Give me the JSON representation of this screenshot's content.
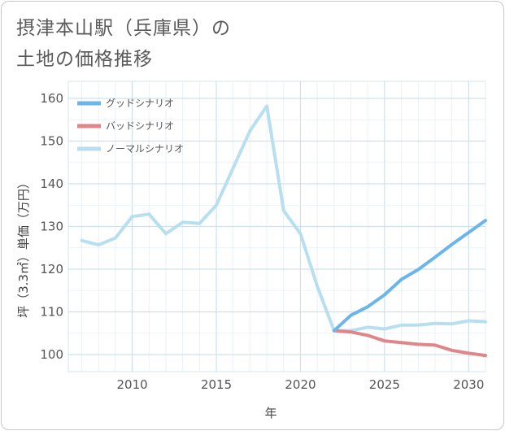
{
  "title_lines": [
    "摂津本山駅（兵庫県）の",
    "土地の価格推移"
  ],
  "chart_data": {
    "type": "line",
    "title": "摂津本山駅（兵庫県）の土地の価格推移",
    "xlabel": "年",
    "ylabel": "坪（3.3㎡）単価（万円）",
    "xlim": [
      2006.2,
      2031
    ],
    "ylim": [
      96,
      164
    ],
    "xticks": [
      2010,
      2015,
      2020,
      2025,
      2030
    ],
    "yticks": [
      100,
      110,
      120,
      130,
      140,
      150,
      160
    ],
    "grid": true,
    "legend_position": "top-left",
    "series": [
      {
        "name": "グッドシナリオ",
        "color": "#6cb5ea",
        "x": [
          2022,
          2023,
          2024,
          2025,
          2026,
          2027,
          2028,
          2029,
          2030,
          2031
        ],
        "y": [
          105.6,
          109.2,
          111.2,
          114,
          117.6,
          119.9,
          122.8,
          125.8,
          128.6,
          131.4
        ]
      },
      {
        "name": "バッドシナリオ",
        "color": "#e0868b",
        "x": [
          2022,
          2023,
          2024,
          2025,
          2026,
          2027,
          2028,
          2029,
          2030,
          2031
        ],
        "y": [
          105.6,
          105.3,
          104.5,
          103.2,
          102.8,
          102.4,
          102.2,
          101,
          100.3,
          99.8
        ]
      },
      {
        "name": "ノーマルシナリオ",
        "color": "#b7dff0",
        "x": [
          2007,
          2008,
          2009,
          2010,
          2011,
          2012,
          2013,
          2014,
          2015,
          2016,
          2017,
          2018,
          2019,
          2020,
          2021,
          2022,
          2023,
          2024,
          2025,
          2026,
          2027,
          2028,
          2029,
          2030,
          2031
        ],
        "y": [
          126.7,
          125.7,
          127.3,
          132.3,
          132.9,
          128.3,
          131,
          130.7,
          135,
          143.7,
          152.4,
          158.2,
          133.7,
          128.3,
          116,
          105.6,
          105.6,
          106.4,
          106,
          106.9,
          106.9,
          107.3,
          107.2,
          107.9,
          107.7
        ]
      }
    ]
  }
}
